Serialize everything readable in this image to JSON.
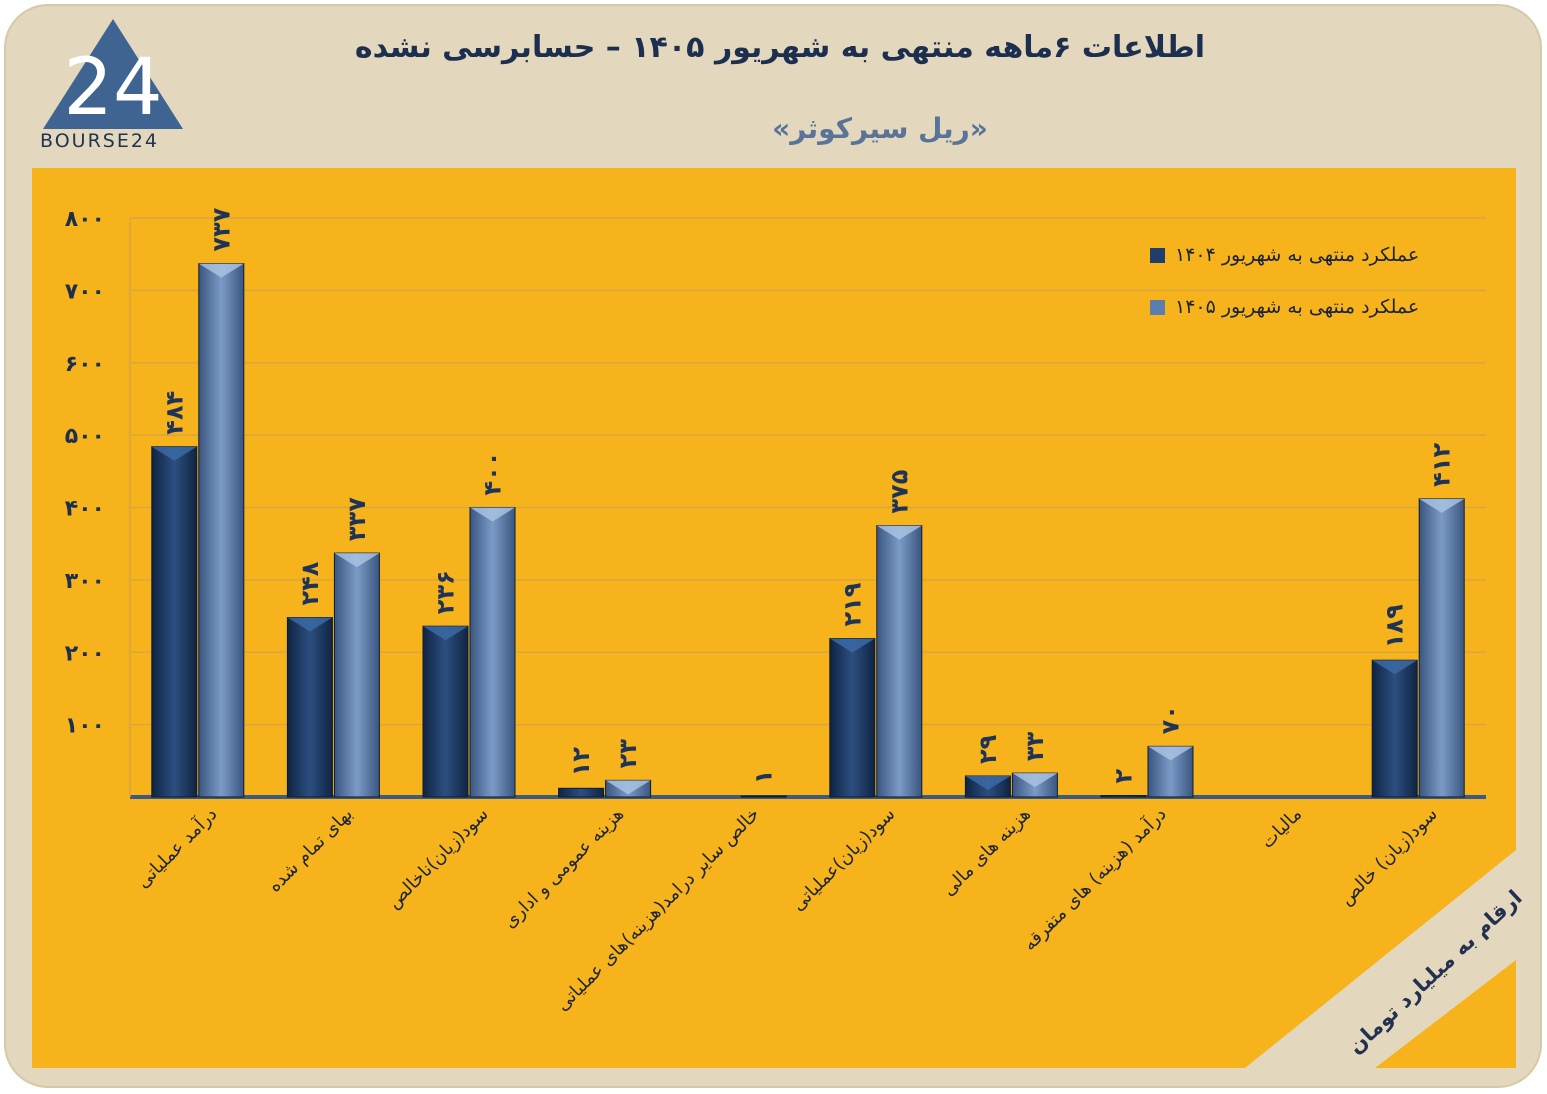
{
  "header": {
    "title": "اطلاعات ۶ماهه منتهی به شهریور ۱۴۰۵ – حسابرسی نشده",
    "subtitle": "«ریل سیرکوثر»",
    "logo_text": "BOURSE24",
    "logo_mark": "24"
  },
  "note": "ارقام به میلیارد تومان",
  "colors": {
    "background": "#e3d8bd",
    "panel": "#f6b31b",
    "series_1404": "#1f3f6b",
    "series_1405": "#5a7fae",
    "text_dark": "#1d2f4e"
  },
  "chart_data": {
    "type": "bar",
    "title": "",
    "xlabel": "",
    "ylabel": "",
    "ylim": [
      0,
      800
    ],
    "y_ticks": [
      "۸۰۰",
      "۷۰۰",
      "۶۰۰",
      "۵۰۰",
      "۴۰۰",
      "۳۰۰",
      "۲۰۰",
      "۱۰۰"
    ],
    "y_tick_values": [
      800,
      700,
      600,
      500,
      400,
      300,
      200,
      100
    ],
    "grid": true,
    "legend_position": "top-right",
    "categories": [
      "درآمد عملیاتی",
      "بهای تمام شده",
      "سود(زیان)ناخالص",
      "هزینه عمومی و اداری",
      "خالص سایر درامد(هزینه)های عملیاتی",
      "سود(زیان)عملیاتی",
      "هزینه های مالی",
      "درآمد (هزینه) های متفرقه",
      "مالیات",
      "سود(زیان) خالص"
    ],
    "series": [
      {
        "name": "عملکرد منتهی به شهریور ۱۴۰۴",
        "values": [
          484,
          248,
          236,
          12,
          null,
          219,
          29,
          2,
          null,
          189
        ],
        "labels": [
          "۴۸۴",
          "۲۴۸",
          "۲۳۶",
          "۱۲",
          "",
          "۲۱۹",
          "۲۹",
          "۲",
          "",
          "۱۸۹"
        ]
      },
      {
        "name": "عملکرد منتهی به شهریور ۱۴۰۵",
        "values": [
          737,
          337,
          400,
          23,
          1,
          375,
          33,
          70,
          null,
          412
        ],
        "labels": [
          "۷۳۷",
          "۳۳۷",
          "۴۰۰",
          "۲۳",
          "۱",
          "۳۷۵",
          "۳۳",
          "۷۰",
          "",
          "۴۱۲"
        ]
      }
    ]
  }
}
